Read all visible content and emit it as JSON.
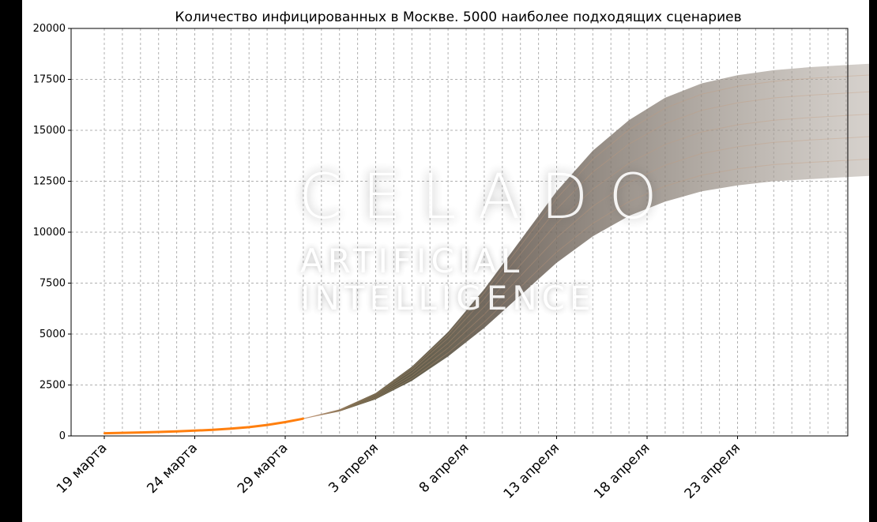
{
  "chart_data": {
    "type": "line",
    "title": "Количество инфицированных в Москве. 5000 наиболее подходящих сценариев",
    "xlabel": "",
    "ylabel": "",
    "ylim": [
      0,
      20000
    ],
    "yticks": [
      0,
      2500,
      5000,
      7500,
      10000,
      12500,
      15000,
      17500,
      20000
    ],
    "xtick_labels": [
      "19 марта",
      "24 марта",
      "29 марта",
      "3 апреля",
      "8 апреля",
      "13 апреля",
      "18 апреля",
      "23 апреля"
    ],
    "x_start": "2020-03-19",
    "x_end": "2020-05-01",
    "grid": true,
    "observed": {
      "color": "#ff7f0e",
      "x": [
        "2020-03-19",
        "2020-03-20",
        "2020-03-21",
        "2020-03-22",
        "2020-03-23",
        "2020-03-24",
        "2020-03-25",
        "2020-03-26",
        "2020-03-27",
        "2020-03-28",
        "2020-03-29",
        "2020-03-30"
      ],
      "y": [
        130,
        150,
        170,
        195,
        225,
        260,
        300,
        360,
        430,
        540,
        680,
        850
      ]
    },
    "scenario_band": {
      "color": "#8a8278",
      "x": [
        "2020-03-30",
        "2020-04-01",
        "2020-04-03",
        "2020-04-05",
        "2020-04-07",
        "2020-04-09",
        "2020-04-11",
        "2020-04-13",
        "2020-04-15",
        "2020-04-17",
        "2020-04-19",
        "2020-04-21",
        "2020-04-23",
        "2020-04-25",
        "2020-04-27",
        "2020-04-29",
        "2020-05-01"
      ],
      "upper": [
        850,
        1300,
        2100,
        3400,
        5100,
        7200,
        9600,
        12000,
        14000,
        15500,
        16600,
        17300,
        17700,
        17950,
        18100,
        18200,
        18300
      ],
      "lower": [
        850,
        1200,
        1800,
        2700,
        3900,
        5300,
        6900,
        8500,
        9800,
        10800,
        11500,
        12000,
        12300,
        12500,
        12600,
        12700,
        12800
      ]
    }
  },
  "watermark": {
    "line1": "CELADO",
    "line2": "ARTIFICIAL",
    "line3": "INTELLIGENCE"
  }
}
